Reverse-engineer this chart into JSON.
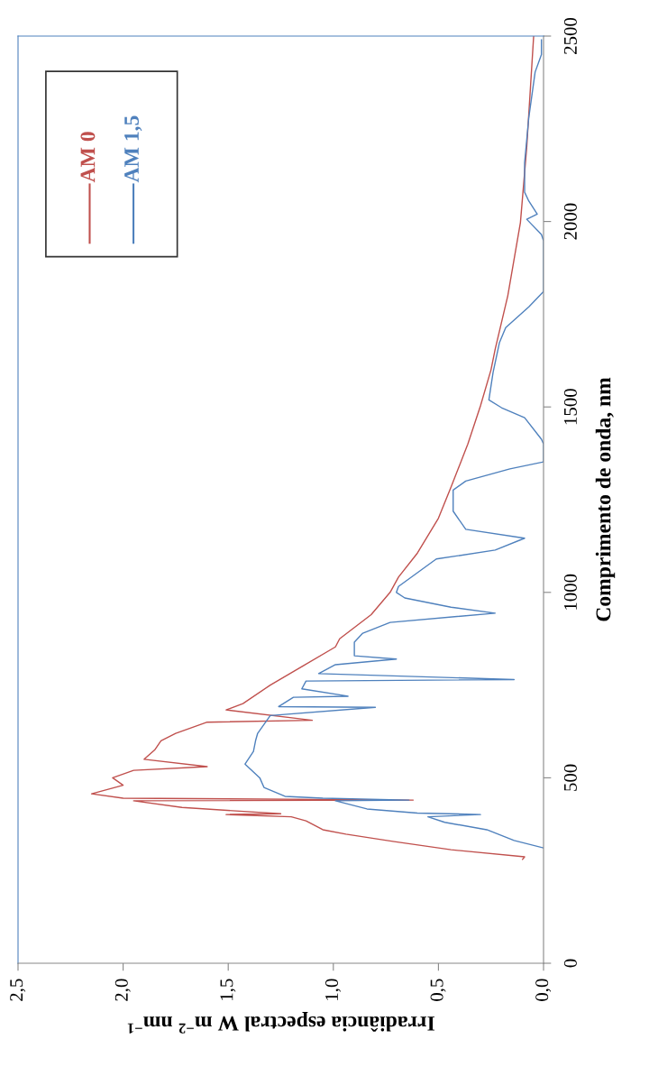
{
  "chart_data": {
    "type": "line",
    "ylabel": "Comprimento de onda, nm",
    "xlabel": "Irradiância espectral W m$^{−2}$ nm$^{−1}$",
    "ylim": [
      0,
      2500
    ],
    "yticks": [
      0,
      500,
      1000,
      1500,
      2000,
      2500
    ],
    "xlim": [
      2.5,
      0
    ],
    "xticks": [
      {
        "value": 0,
        "label": "0,0"
      },
      {
        "value": 0.5,
        "label": "0,5"
      },
      {
        "value": 1,
        "label": "1,0"
      },
      {
        "value": 1.5,
        "label": "1,5"
      },
      {
        "value": 2,
        "label": "2,0"
      },
      {
        "value": 2.5,
        "label": "2,5"
      }
    ],
    "legend": "top left",
    "grid": false,
    "series": [
      {
        "name": "AM 0",
        "color": "#c0504d",
        "values": [
          280,
          287,
          306,
          328,
          348,
          360,
          384,
          395,
          401,
          403,
          420,
          438,
          440,
          445,
          457,
          480,
          500,
          520,
          530,
          550,
          575,
          600,
          620,
          650,
          655,
          683,
          700,
          750,
          800,
          853,
          875,
          940,
          1000,
          1041,
          1106,
          1200,
          1284,
          1400,
          1503,
          1600,
          1656,
          1800,
          1997,
          2200,
          2500
        ],
        "x": [
          0.1,
          0.09,
          0.44,
          0.71,
          0.94,
          1.05,
          1.13,
          1.2,
          1.51,
          1.25,
          1.72,
          1.95,
          0.62,
          2.0,
          2.15,
          2.0,
          2.05,
          1.95,
          1.6,
          1.9,
          1.85,
          1.82,
          1.75,
          1.6,
          1.1,
          1.51,
          1.43,
          1.3,
          1.15,
          0.99,
          0.97,
          0.82,
          0.73,
          0.69,
          0.6,
          0.5,
          0.44,
          0.36,
          0.3,
          0.25,
          0.23,
          0.17,
          0.11,
          0.08,
          0.047
        ]
      },
      {
        "name": "AM 1,5",
        "color": "#4f81bd",
        "values": [
          311,
          331,
          360,
          380,
          395,
          401,
          405,
          416,
          438,
          440,
          445,
          450,
          474,
          500,
          537,
          571,
          600,
          620,
          668,
          690,
          692,
          717,
          720,
          740,
          761,
          765,
          781,
          805,
          820,
          829,
          866,
          890,
          919,
          944,
          960,
          985,
          1000,
          1016,
          1090,
          1114,
          1146,
          1170,
          1219,
          1276,
          1300,
          1333,
          1352,
          1400,
          1413,
          1471,
          1498,
          1519,
          1593,
          1673,
          1714,
          1770,
          1811,
          1948,
          1965,
          2006,
          2020,
          2055,
          2079,
          2159,
          2281,
          2403,
          2450,
          2490
        ],
        "x": [
          0.0,
          0.14,
          0.27,
          0.47,
          0.55,
          0.3,
          0.6,
          0.84,
          0.99,
          0.64,
          1.05,
          1.23,
          1.33,
          1.35,
          1.42,
          1.38,
          1.37,
          1.36,
          1.3,
          0.8,
          1.26,
          1.19,
          0.93,
          1.15,
          1.13,
          0.14,
          1.07,
          0.99,
          0.7,
          0.9,
          0.9,
          0.86,
          0.73,
          0.23,
          0.44,
          0.66,
          0.7,
          0.69,
          0.51,
          0.23,
          0.09,
          0.37,
          0.43,
          0.43,
          0.37,
          0.16,
          0.0,
          0.0,
          0.01,
          0.09,
          0.2,
          0.26,
          0.24,
          0.21,
          0.18,
          0.07,
          0.0,
          0.0,
          0.01,
          0.08,
          0.03,
          0.07,
          0.09,
          0.09,
          0.07,
          0.04,
          0.01,
          0.01
        ]
      }
    ]
  }
}
